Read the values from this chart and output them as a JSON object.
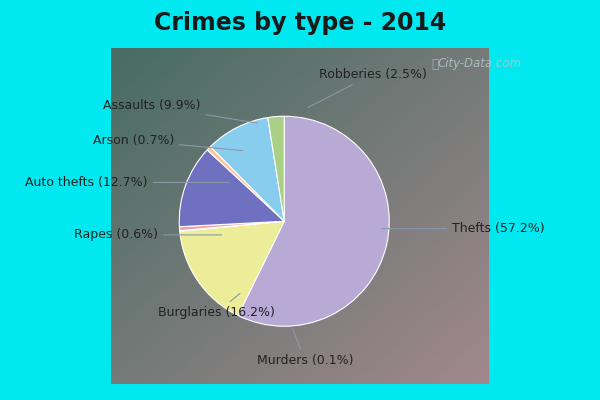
{
  "title": "Crimes by type - 2014",
  "labels": [
    "Thefts",
    "Burglaries",
    "Murders",
    "Rapes",
    "Auto thefts",
    "Arson",
    "Assaults",
    "Robberies"
  ],
  "label_strings": [
    "Thefts (57.2%)",
    "Burglaries (16.2%)",
    "Murders (0.1%)",
    "Rapes (0.6%)",
    "Auto thefts (12.7%)",
    "Arson (0.7%)",
    "Assaults (9.9%)",
    "Robberies (2.5%)"
  ],
  "values": [
    57.2,
    16.2,
    0.1,
    0.6,
    12.7,
    0.7,
    9.9,
    2.5
  ],
  "colors": [
    "#b8aad4",
    "#eded99",
    "#d4c89a",
    "#f0a0a8",
    "#7070c0",
    "#f5c8a0",
    "#88ccee",
    "#aad088"
  ],
  "border_color": "#00e8f0",
  "border_width": 8,
  "bg_color_tl": "#8ed8c8",
  "bg_color_br": "#e8f4f0",
  "title_fontsize": 17,
  "label_fontsize": 9,
  "watermark": "City-Data.com"
}
